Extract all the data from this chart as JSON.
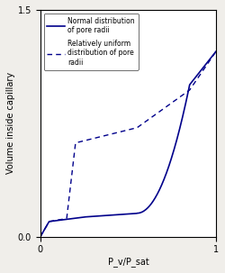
{
  "title": "",
  "xlabel": "P_v/P_sat",
  "ylabel": "Volume inside capillary",
  "xlim": [
    0,
    1
  ],
  "ylim": [
    0,
    1.5
  ],
  "yticks": [
    0,
    1.5
  ],
  "xticks": [
    0,
    1
  ],
  "line_color": "#00008B",
  "background_color": "#f0eeea",
  "legend_label_solid": "Normal distribution\nof pore radii",
  "legend_label_dashed": "Relatively uniform\ndistribution of pore\nradii",
  "figsize": [
    2.5,
    3.03
  ],
  "dpi": 100
}
